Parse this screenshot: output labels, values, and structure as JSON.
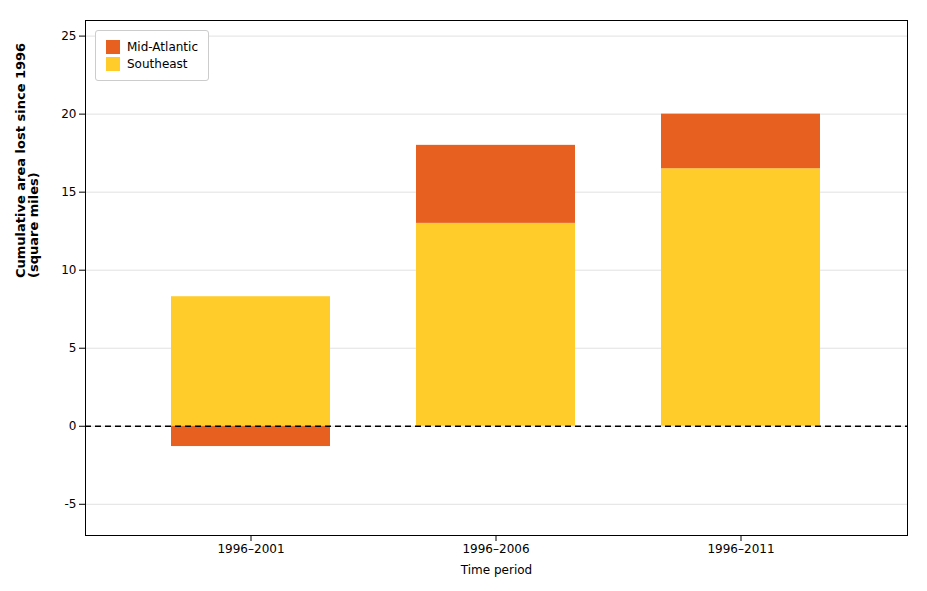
{
  "chart_data": {
    "type": "bar",
    "stacked": true,
    "xlabel": "Time period",
    "ylabel": "Cumulative area lost since 1996\n(square miles)",
    "categories": [
      "1996–2001",
      "1996–2006",
      "1996–2011"
    ],
    "series": [
      {
        "name": "Southeast",
        "color": "#FFCC2A",
        "values": [
          8.3,
          13.0,
          16.5
        ]
      },
      {
        "name": "Mid-Atlantic",
        "color": "#E86020",
        "values": [
          -1.3,
          5.0,
          3.5
        ]
      }
    ],
    "ylim": [
      -7,
      26
    ],
    "yticks": [
      -5,
      0,
      5,
      10,
      15,
      20,
      25
    ],
    "grid": true,
    "legend": "upper left"
  }
}
